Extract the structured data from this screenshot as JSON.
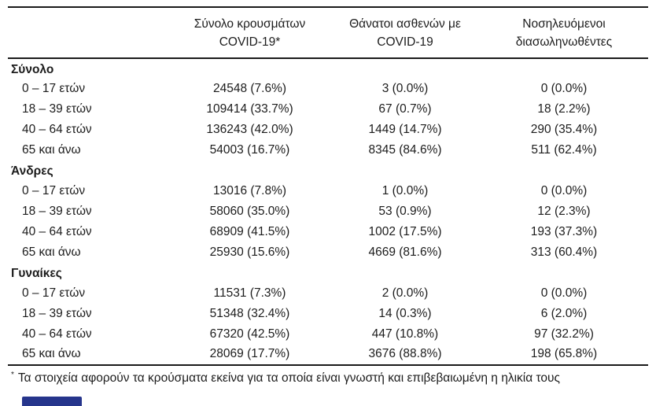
{
  "table": {
    "columns": [
      {
        "line1": "Σύνολο κρουσμάτων",
        "line2": "COVID-19*"
      },
      {
        "line1": "Θάνατοι ασθενών με",
        "line2": "COVID-19"
      },
      {
        "line1": "Νοσηλευόμενοι",
        "line2": "διασωληνωθέντες"
      }
    ],
    "groups": [
      {
        "label": "Σύνολο",
        "rows": [
          {
            "label": "0 – 17 ετών",
            "cases": "24548 (7.6%)",
            "deaths": "3 (0.0%)",
            "intubated": "0 (0.0%)"
          },
          {
            "label": "18 – 39 ετών",
            "cases": "109414 (33.7%)",
            "deaths": "67 (0.7%)",
            "intubated": "18 (2.2%)"
          },
          {
            "label": "40 – 64 ετών",
            "cases": "136243 (42.0%)",
            "deaths": "1449 (14.7%)",
            "intubated": "290 (35.4%)"
          },
          {
            "label": "65 και άνω",
            "cases": "54003 (16.7%)",
            "deaths": "8345 (84.6%)",
            "intubated": "511 (62.4%)"
          }
        ]
      },
      {
        "label": "Άνδρες",
        "rows": [
          {
            "label": "0 – 17 ετών",
            "cases": "13016 (7.8%)",
            "deaths": "1 (0.0%)",
            "intubated": "0 (0.0%)"
          },
          {
            "label": "18 – 39 ετών",
            "cases": "58060 (35.0%)",
            "deaths": "53 (0.9%)",
            "intubated": "12 (2.3%)"
          },
          {
            "label": "40 – 64 ετών",
            "cases": "68909 (41.5%)",
            "deaths": "1002 (17.5%)",
            "intubated": "193 (37.3%)"
          },
          {
            "label": "65 και άνω",
            "cases": "25930 (15.6%)",
            "deaths": "4669 (81.6%)",
            "intubated": "313 (60.4%)"
          }
        ]
      },
      {
        "label": "Γυναίκες",
        "rows": [
          {
            "label": "0 – 17 ετών",
            "cases": "11531 (7.3%)",
            "deaths": "2 (0.0%)",
            "intubated": "0 (0.0%)"
          },
          {
            "label": "18 – 39 ετών",
            "cases": "51348 (32.4%)",
            "deaths": "14 (0.3%)",
            "intubated": "6 (2.0%)"
          },
          {
            "label": "40 – 64 ετών",
            "cases": "67320 (42.5%)",
            "deaths": "447 (10.8%)",
            "intubated": "97 (32.2%)"
          },
          {
            "label": "65 και άνω",
            "cases": "28069 (17.7%)",
            "deaths": "3676 (88.8%)",
            "intubated": "198 (65.8%)"
          }
        ]
      }
    ],
    "footnote": {
      "marker": "*",
      "text": "Τα στοιχεία αφορούν τα κρούσματα εκείνα για τα οποία είναι γνωστή και επιβεβαιωμένη η ηλικία τους"
    }
  },
  "colors": {
    "rule": "#1a1a1a",
    "text": "#1c1c1c",
    "partial_element": "#26358c"
  }
}
